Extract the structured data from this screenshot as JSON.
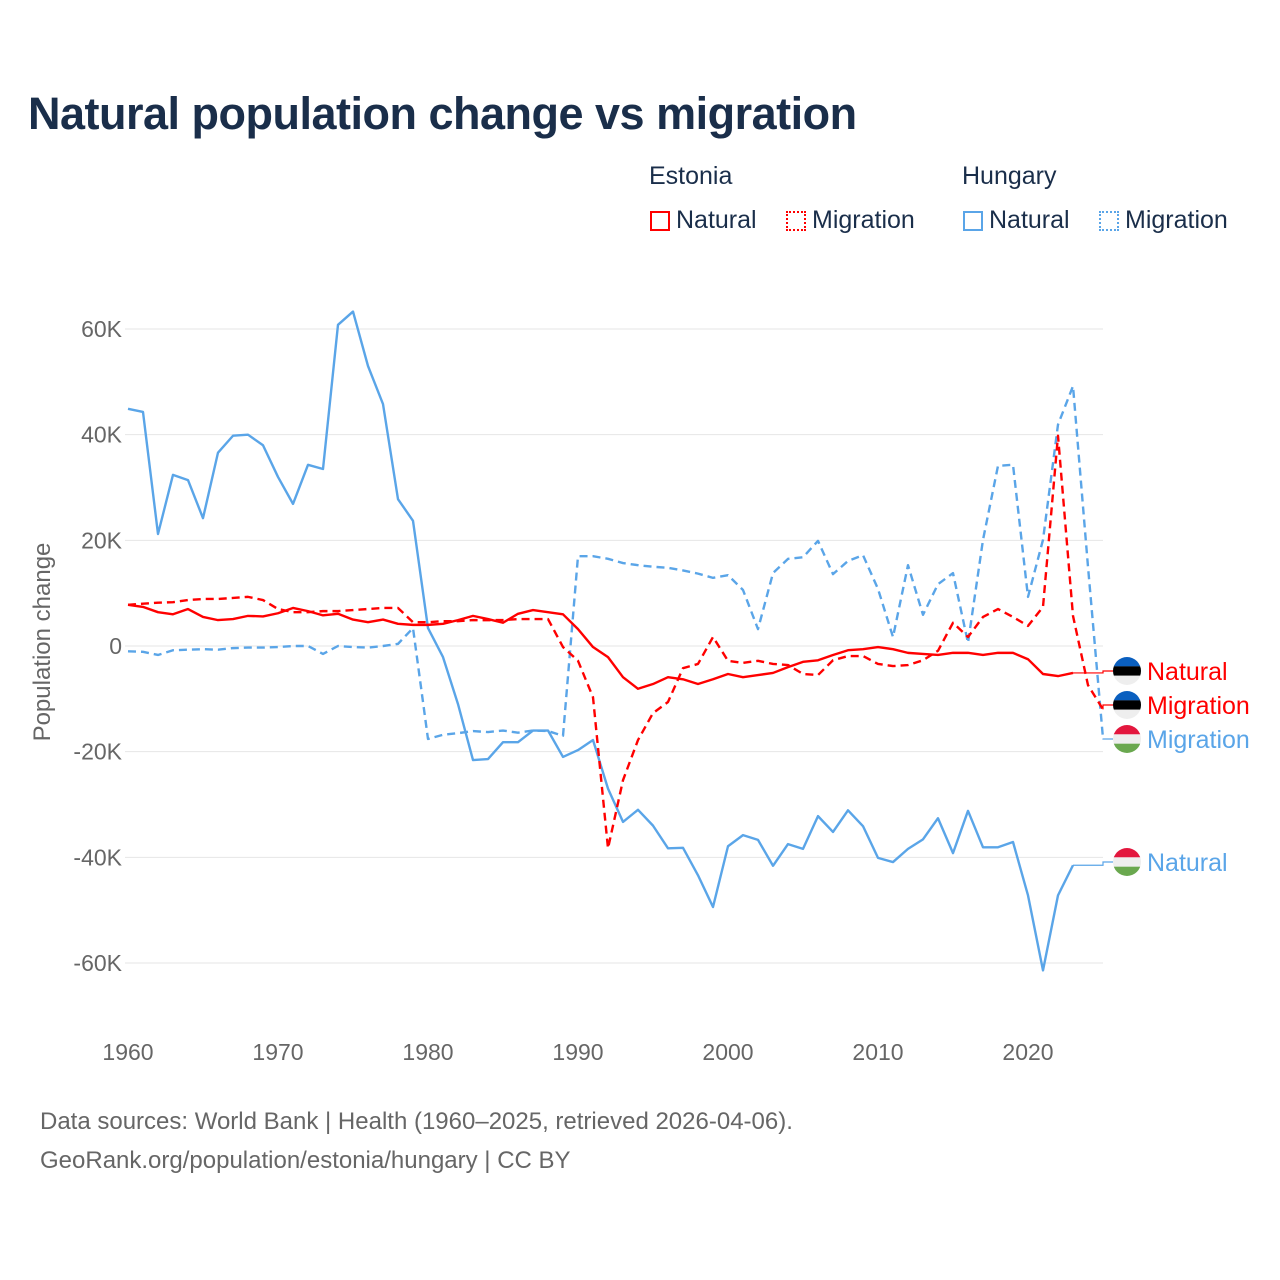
{
  "chart_data": {
    "type": "line",
    "title": "Natural population change vs migration",
    "ylabel": "Population change",
    "xlabel": "",
    "xlim": [
      1960,
      2025
    ],
    "ylim": [
      -70000,
      70000
    ],
    "x_ticks": [
      1960,
      1970,
      1980,
      1990,
      2000,
      2010,
      2020
    ],
    "x_tick_labels": [
      "1960",
      "1970",
      "1980",
      "1990",
      "2000",
      "2010",
      "2020"
    ],
    "y_ticks": [
      60000,
      40000,
      20000,
      0,
      -20000,
      -40000,
      -60000
    ],
    "y_tick_labels": [
      "60K",
      "40K",
      "20K",
      "0",
      "-20K",
      "-40K",
      "-60K"
    ],
    "grid": true,
    "legend": {
      "placement": "top-right",
      "groups": [
        {
          "name": "Estonia",
          "items": [
            "Natural",
            "Migration"
          ]
        },
        {
          "name": "Hungary",
          "items": [
            "Natural",
            "Migration"
          ]
        }
      ]
    },
    "start_year": 1960,
    "series": [
      {
        "name": "Natural",
        "country": "Estonia",
        "color": "#ff0000",
        "dash": false,
        "end_label": "Natural",
        "values": [
          7.8,
          7.4,
          6.4,
          6,
          7,
          5.5,
          4.9,
          5.1,
          5.7,
          5.6,
          6.2,
          7.2,
          6.6,
          5.8,
          6.1,
          5,
          4.5,
          5,
          4.2,
          4,
          4,
          4.2,
          4.9,
          5.7,
          5.1,
          4.4,
          6.1,
          6.8,
          6.4,
          6,
          3.2,
          -0.2,
          -2.1,
          -5.9,
          -8.1,
          -7.2,
          -5.9,
          -6.3,
          -7.2,
          -6.3,
          -5.3,
          -5.9,
          -5.5,
          -5.1,
          -4,
          -3,
          -2.7,
          -1.7,
          -0.8,
          -0.6,
          -0.2,
          -0.6,
          -1.3,
          -1.5,
          -1.7,
          -1.3,
          -1.3,
          -1.7,
          -1.3,
          -1.3,
          -2.5,
          -5.3,
          -5.7,
          -5.1,
          null,
          null
        ]
      },
      {
        "name": "Migration",
        "country": "Estonia",
        "color": "#ff0000",
        "dash": true,
        "end_label": "Migration",
        "values": [
          7.8,
          8,
          8.2,
          8.3,
          8.7,
          8.9,
          8.9,
          9.1,
          9.3,
          8.7,
          7,
          6.4,
          6.4,
          6.6,
          6.6,
          6.8,
          7,
          7.2,
          7.2,
          4.5,
          4.5,
          4.7,
          4.7,
          4.9,
          4.9,
          4.9,
          5.1,
          5.1,
          5.1,
          -0.2,
          -2.8,
          -9.7,
          -38.3,
          -25.4,
          -17.8,
          -12.7,
          -10.6,
          -4.2,
          -3.4,
          1.7,
          -2.8,
          -3.2,
          -2.8,
          -3.4,
          -3.6,
          -5.3,
          -5.5,
          -2.7,
          -1.9,
          -1.9,
          -3.4,
          -3.8,
          -3.6,
          -2.7,
          -0.9,
          4.4,
          1.7,
          5.5,
          7,
          5.5,
          3.8,
          7.4,
          39.8,
          5.7,
          -7.4,
          -12
        ]
      },
      {
        "name": "Natural",
        "country": "Hungary",
        "color": "#5aa5e8",
        "dash": false,
        "end_label": "Natural",
        "values": [
          44.9,
          44.3,
          21.2,
          32.4,
          31.4,
          24.2,
          36.6,
          39.8,
          40,
          38,
          32,
          26.9,
          34.3,
          33.5,
          60.8,
          63.3,
          53,
          45.8,
          27.8,
          23.7,
          3.4,
          -2.1,
          -11,
          -21.6,
          -21.4,
          -18.2,
          -18.2,
          -16,
          -16,
          -21,
          -19.7,
          -17.8,
          -27,
          -33.3,
          -31,
          -34,
          -38.3,
          -38.2,
          -43.4,
          -49.4,
          -37.9,
          -35.8,
          -36.7,
          -41.6,
          -37.5,
          -38.4,
          -32.2,
          -35.2,
          -31.1,
          -34.1,
          -40.1,
          -40.9,
          -38.4,
          -36.6,
          -32.6,
          -39.2,
          -31.2,
          -38.1,
          -38.1,
          -37.1,
          -47.2,
          -61.4,
          -47.2,
          -41.5,
          null,
          null
        ]
      },
      {
        "name": "Migration",
        "country": "Hungary",
        "color": "#5aa5e8",
        "dash": true,
        "end_label": "Migration",
        "values": [
          -1,
          -1.1,
          -1.7,
          -0.8,
          -0.7,
          -0.6,
          -0.7,
          -0.4,
          -0.3,
          -0.3,
          -0.2,
          0,
          0,
          -1.5,
          0,
          -0.2,
          -0.3,
          0,
          0.4,
          3.4,
          -17.6,
          -16.8,
          -16.5,
          -16.1,
          -16.3,
          -16,
          -16.4,
          -16,
          -16.1,
          -17,
          17,
          17,
          16.5,
          15.7,
          15.3,
          15,
          14.8,
          14.3,
          13.7,
          12.9,
          13.4,
          10.6,
          3.2,
          13.8,
          16.5,
          16.8,
          19.9,
          13.6,
          16.1,
          17.2,
          10.8,
          1.7,
          15.3,
          5.9,
          11.7,
          13.8,
          0.6,
          20.1,
          34.1,
          34.3,
          9.3,
          20.1,
          41.9,
          49.2,
          15,
          -17.5
        ]
      }
    ],
    "value_unit": "thousands"
  },
  "footer": {
    "line1": "Data sources: World Bank | Health (1960–2025, retrieved 2026-04-06).",
    "line2": "GeoRank.org/population/estonia/hungary | CC BY"
  }
}
